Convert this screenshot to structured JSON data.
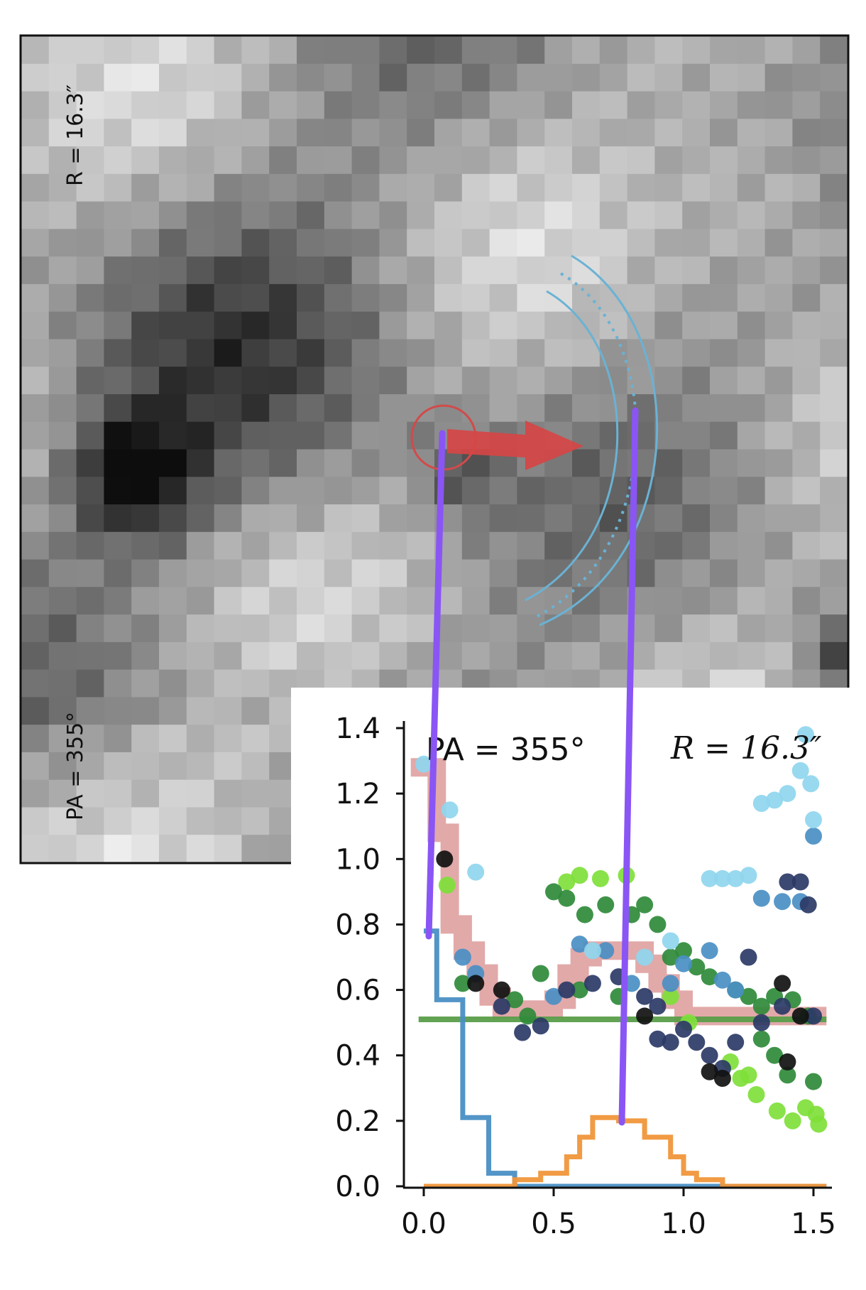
{
  "image_panel": {
    "label_top": "R = 16.3″",
    "label_bottom": "PA = 355°"
  },
  "chart_data": {
    "type": "line",
    "title": "",
    "xlabel": "",
    "ylabel": "",
    "xlim": [
      -0.07,
      1.57
    ],
    "ylim": [
      0,
      1.42
    ],
    "x_ticks": [
      "0.0",
      "0.5",
      "1.0",
      "1.5"
    ],
    "y_ticks": [
      "0.0",
      "0.2",
      "0.4",
      "0.6",
      "0.8",
      "1.0",
      "1.2",
      "1.4"
    ],
    "annotations": [
      "PA = 355°",
      "R = 16.3″"
    ],
    "grid": false,
    "legend": "none",
    "series": [
      {
        "color": "#d88c8c",
        "style": "thick-step",
        "points": [
          [
            -0.05,
            1.28
          ],
          [
            0.05,
            1.28
          ],
          [
            0.05,
            1.08
          ],
          [
            0.1,
            1.08
          ],
          [
            0.1,
            0.8
          ],
          [
            0.15,
            0.8
          ],
          [
            0.15,
            0.72
          ],
          [
            0.2,
            0.72
          ],
          [
            0.2,
            0.65
          ],
          [
            0.25,
            0.65
          ],
          [
            0.25,
            0.58
          ],
          [
            0.3,
            0.58
          ],
          [
            0.3,
            0.54
          ],
          [
            0.5,
            0.54
          ],
          [
            0.5,
            0.57
          ],
          [
            0.55,
            0.57
          ],
          [
            0.55,
            0.65
          ],
          [
            0.6,
            0.65
          ],
          [
            0.6,
            0.7
          ],
          [
            0.65,
            0.7
          ],
          [
            0.65,
            0.72
          ],
          [
            0.85,
            0.72
          ],
          [
            0.85,
            0.68
          ],
          [
            0.9,
            0.68
          ],
          [
            0.9,
            0.62
          ],
          [
            0.95,
            0.62
          ],
          [
            0.95,
            0.57
          ],
          [
            1.0,
            0.57
          ],
          [
            1.0,
            0.52
          ],
          [
            1.55,
            0.52
          ]
        ]
      },
      {
        "color": "#5a9e4a",
        "style": "line",
        "points": [
          [
            -0.02,
            0.51
          ],
          [
            1.55,
            0.51
          ]
        ]
      },
      {
        "color": "#4a8fc4",
        "style": "step",
        "points": [
          [
            0.0,
            0.78
          ],
          [
            0.05,
            0.78
          ],
          [
            0.05,
            0.57
          ],
          [
            0.15,
            0.57
          ],
          [
            0.15,
            0.21
          ],
          [
            0.25,
            0.21
          ],
          [
            0.25,
            0.04
          ],
          [
            0.35,
            0.04
          ],
          [
            0.35,
            0.0
          ],
          [
            1.55,
            0.0
          ]
        ]
      },
      {
        "color": "#f0963a",
        "style": "step",
        "points": [
          [
            0.0,
            0.0
          ],
          [
            0.35,
            0.0
          ],
          [
            0.35,
            0.02
          ],
          [
            0.45,
            0.02
          ],
          [
            0.45,
            0.04
          ],
          [
            0.55,
            0.04
          ],
          [
            0.55,
            0.09
          ],
          [
            0.6,
            0.09
          ],
          [
            0.6,
            0.15
          ],
          [
            0.65,
            0.15
          ],
          [
            0.65,
            0.21
          ],
          [
            0.75,
            0.21
          ],
          [
            0.75,
            0.2
          ],
          [
            0.85,
            0.2
          ],
          [
            0.85,
            0.15
          ],
          [
            0.95,
            0.15
          ],
          [
            0.95,
            0.09
          ],
          [
            1.0,
            0.09
          ],
          [
            1.0,
            0.04
          ],
          [
            1.05,
            0.04
          ],
          [
            1.05,
            0.02
          ],
          [
            1.15,
            0.02
          ],
          [
            1.15,
            0.0
          ],
          [
            1.55,
            0.0
          ]
        ]
      }
    ],
    "scatter_groups": [
      {
        "color": "#7fe03a",
        "points": [
          [
            0.09,
            0.92
          ],
          [
            0.55,
            0.93
          ],
          [
            0.6,
            0.95
          ],
          [
            0.68,
            0.94
          ],
          [
            0.78,
            0.95
          ],
          [
            1.22,
            0.33
          ],
          [
            1.28,
            0.28
          ],
          [
            1.36,
            0.23
          ],
          [
            1.42,
            0.2
          ],
          [
            1.47,
            0.24
          ],
          [
            1.51,
            0.22
          ],
          [
            1.52,
            0.19
          ],
          [
            1.18,
            0.38
          ],
          [
            1.25,
            0.34
          ],
          [
            0.95,
            0.58
          ],
          [
            1.02,
            0.5
          ]
        ]
      },
      {
        "color": "#2f8a3a",
        "points": [
          [
            0.45,
            0.65
          ],
          [
            0.5,
            0.9
          ],
          [
            0.55,
            0.88
          ],
          [
            0.62,
            0.83
          ],
          [
            0.7,
            0.86
          ],
          [
            0.8,
            0.83
          ],
          [
            0.85,
            0.86
          ],
          [
            0.9,
            0.8
          ],
          [
            1.0,
            0.72
          ],
          [
            1.05,
            0.67
          ],
          [
            1.1,
            0.64
          ],
          [
            1.2,
            0.6
          ],
          [
            1.25,
            0.58
          ],
          [
            1.3,
            0.55
          ],
          [
            1.35,
            0.58
          ],
          [
            1.42,
            0.57
          ],
          [
            1.48,
            0.52
          ],
          [
            1.5,
            0.32
          ],
          [
            1.4,
            0.34
          ],
          [
            1.35,
            0.4
          ],
          [
            1.3,
            0.45
          ],
          [
            0.35,
            0.57
          ],
          [
            0.4,
            0.52
          ],
          [
            0.15,
            0.62
          ],
          [
            0.95,
            0.7
          ],
          [
            0.6,
            0.6
          ],
          [
            0.75,
            0.58
          ]
        ]
      },
      {
        "color": "#4a8fc4",
        "points": [
          [
            0.15,
            0.7
          ],
          [
            0.2,
            0.65
          ],
          [
            0.6,
            0.74
          ],
          [
            0.7,
            0.72
          ],
          [
            1.1,
            0.72
          ],
          [
            1.3,
            0.88
          ],
          [
            1.38,
            0.87
          ],
          [
            1.45,
            0.87
          ],
          [
            1.5,
            1.07
          ],
          [
            1.0,
            0.68
          ],
          [
            1.15,
            0.63
          ],
          [
            1.2,
            0.6
          ],
          [
            0.5,
            0.58
          ],
          [
            0.8,
            0.62
          ],
          [
            0.95,
            0.62
          ]
        ]
      },
      {
        "color": "#8fd6ee",
        "points": [
          [
            0.0,
            1.29
          ],
          [
            0.1,
            1.15
          ],
          [
            0.2,
            0.96
          ],
          [
            1.1,
            0.94
          ],
          [
            1.15,
            0.94
          ],
          [
            1.2,
            0.94
          ],
          [
            1.25,
            0.95
          ],
          [
            1.3,
            1.17
          ],
          [
            1.35,
            1.18
          ],
          [
            1.4,
            1.2
          ],
          [
            1.45,
            1.27
          ],
          [
            1.47,
            1.38
          ],
          [
            1.49,
            1.23
          ],
          [
            1.5,
            1.12
          ],
          [
            0.65,
            0.72
          ],
          [
            0.85,
            0.7
          ],
          [
            0.95,
            0.75
          ]
        ]
      },
      {
        "color": "#2b3a66",
        "points": [
          [
            0.3,
            0.55
          ],
          [
            0.38,
            0.47
          ],
          [
            0.45,
            0.49
          ],
          [
            0.55,
            0.6
          ],
          [
            0.65,
            0.62
          ],
          [
            0.75,
            0.64
          ],
          [
            0.85,
            0.58
          ],
          [
            0.9,
            0.55
          ],
          [
            1.0,
            0.48
          ],
          [
            1.05,
            0.44
          ],
          [
            1.1,
            0.4
          ],
          [
            1.15,
            0.36
          ],
          [
            1.2,
            0.44
          ],
          [
            1.3,
            0.5
          ],
          [
            1.38,
            0.55
          ],
          [
            1.4,
            0.93
          ],
          [
            1.45,
            0.93
          ],
          [
            1.48,
            0.86
          ],
          [
            1.5,
            0.52
          ],
          [
            0.9,
            0.45
          ],
          [
            0.95,
            0.44
          ],
          [
            1.25,
            0.7
          ]
        ]
      },
      {
        "color": "#111111",
        "points": [
          [
            0.08,
            1.0
          ],
          [
            0.2,
            0.62
          ],
          [
            0.3,
            0.6
          ],
          [
            1.1,
            0.35
          ],
          [
            1.15,
            0.33
          ],
          [
            1.38,
            0.62
          ],
          [
            1.45,
            0.52
          ],
          [
            1.4,
            0.38
          ],
          [
            0.85,
            0.52
          ]
        ]
      }
    ]
  }
}
